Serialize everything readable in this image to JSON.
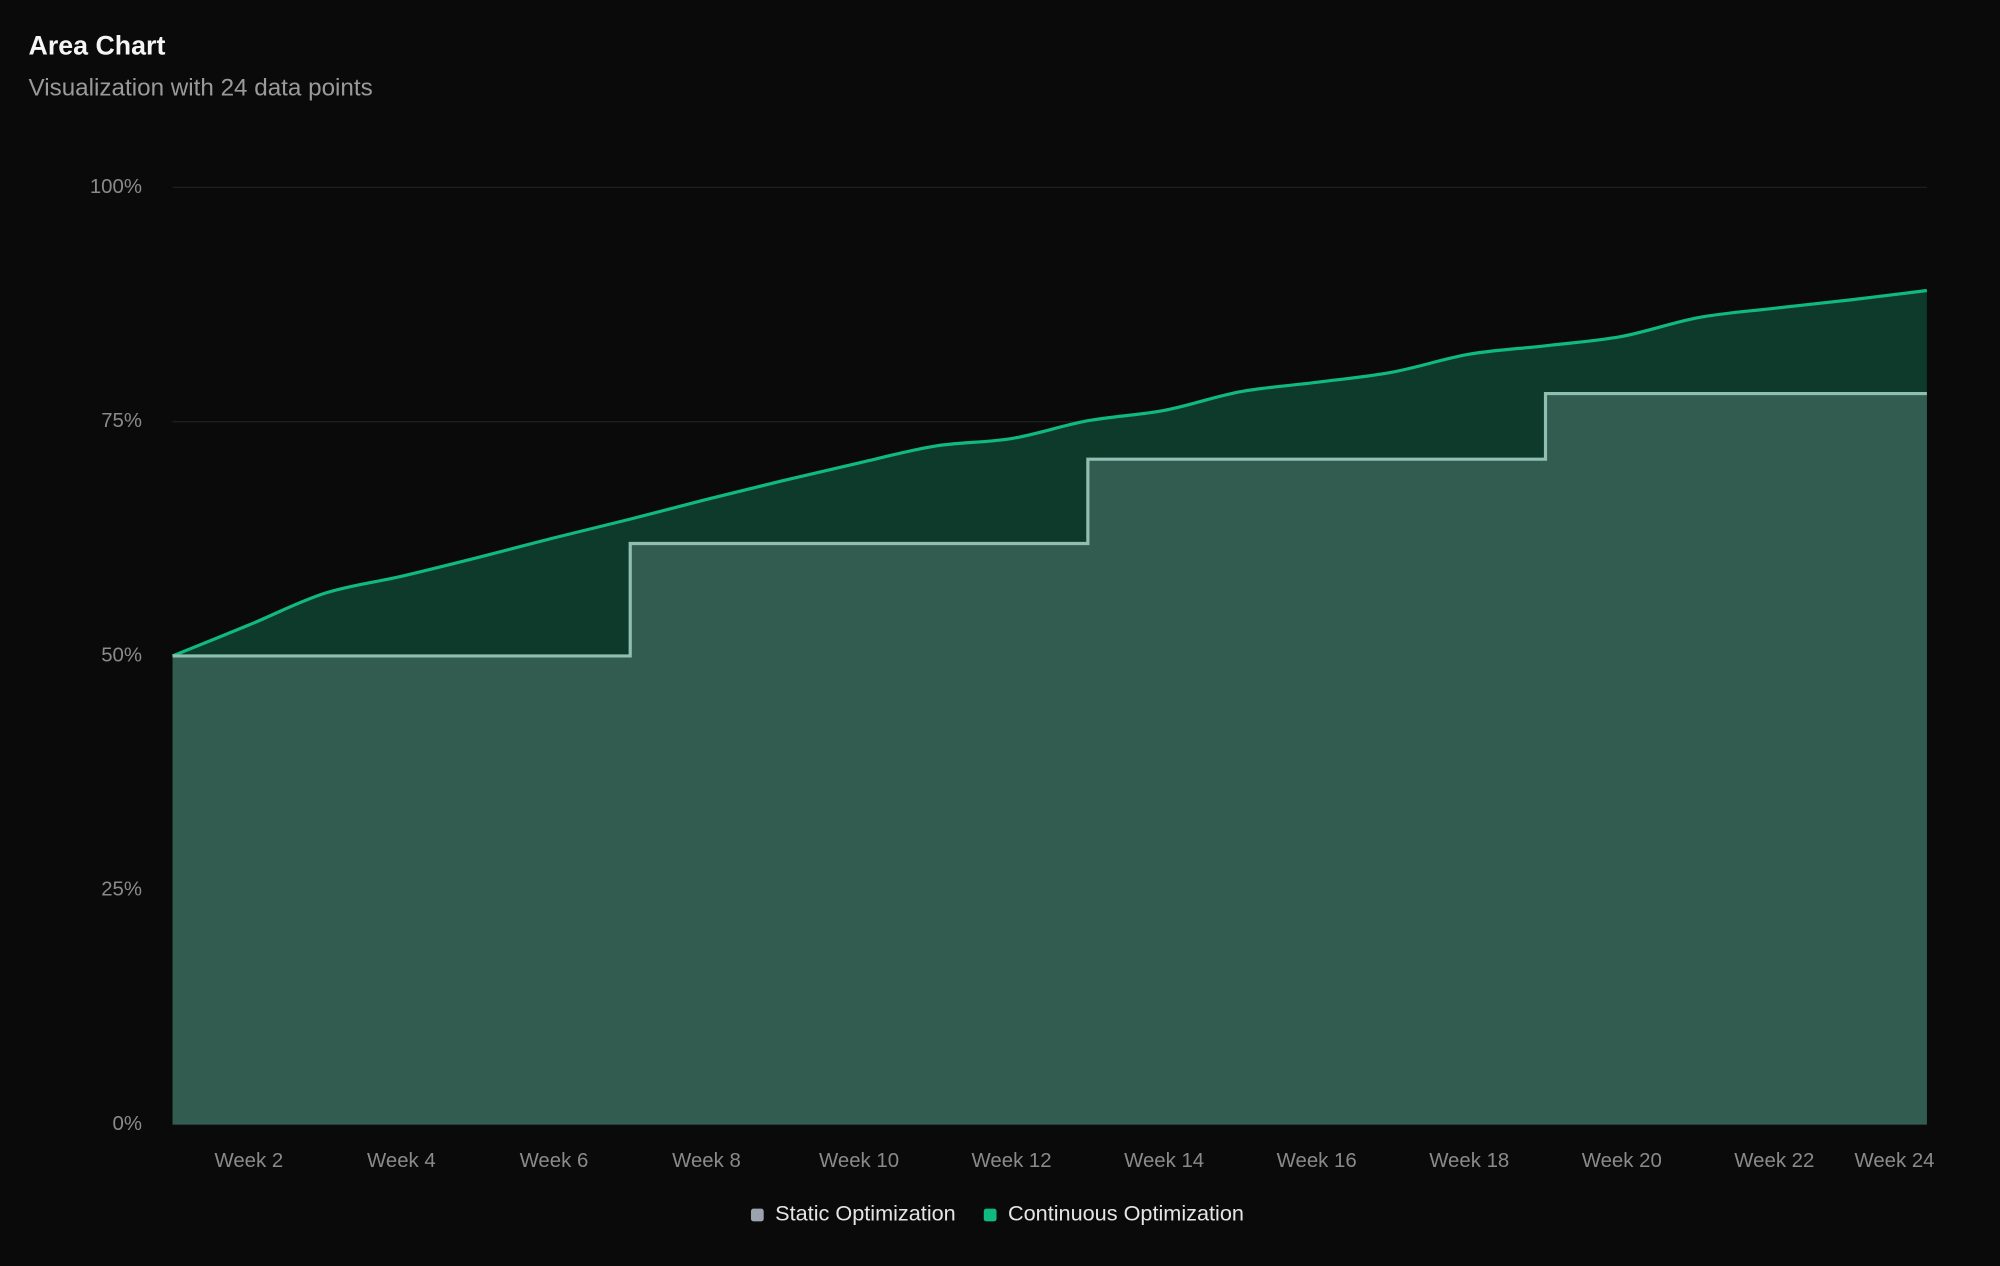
{
  "chart_data": {
    "type": "area",
    "title": "Area Chart",
    "subtitle": "Visualization with 24 data points",
    "categories": [
      null,
      "Week 2",
      null,
      "Week 4",
      null,
      "Week 6",
      null,
      "Week 8",
      null,
      "Week 10",
      null,
      "Week 12",
      null,
      "Week 14",
      null,
      "Week 16",
      null,
      "Week 18",
      null,
      "Week 20",
      null,
      "Week 22",
      null,
      "Week 24"
    ],
    "series": [
      {
        "name": "Continuous Optimization",
        "color": "#10b981",
        "fill": "#0e3a2b",
        "curve": "smooth",
        "values": [
          50,
          53.3,
          56.7,
          58.5,
          60.5,
          62.6,
          64.6,
          66.7,
          68.7,
          70.6,
          72.4,
          73.2,
          75.1,
          76.2,
          78.2,
          79.2,
          80.3,
          82.2,
          83.1,
          84.1,
          86.1,
          87.1,
          88.0,
          89.0
        ]
      },
      {
        "name": "Static Optimization",
        "color": "#8fbfb0",
        "fill": "#325c4f",
        "legend_color": "#9ca3af",
        "curve": "step-after",
        "values": [
          50,
          50,
          50,
          50,
          50,
          50,
          62,
          62,
          62,
          62,
          62,
          62,
          71,
          71,
          71,
          71,
          71,
          71,
          78,
          78,
          78,
          78,
          78,
          78
        ]
      }
    ],
    "ylim": [
      0,
      100
    ],
    "yticks": [
      {
        "value": 0,
        "label": "0%"
      },
      {
        "value": 25,
        "label": "25%"
      },
      {
        "value": 50,
        "label": "50%"
      },
      {
        "value": 75,
        "label": "75%"
      },
      {
        "value": 100,
        "label": "100%"
      }
    ],
    "grid": true,
    "legend": "bottom"
  }
}
